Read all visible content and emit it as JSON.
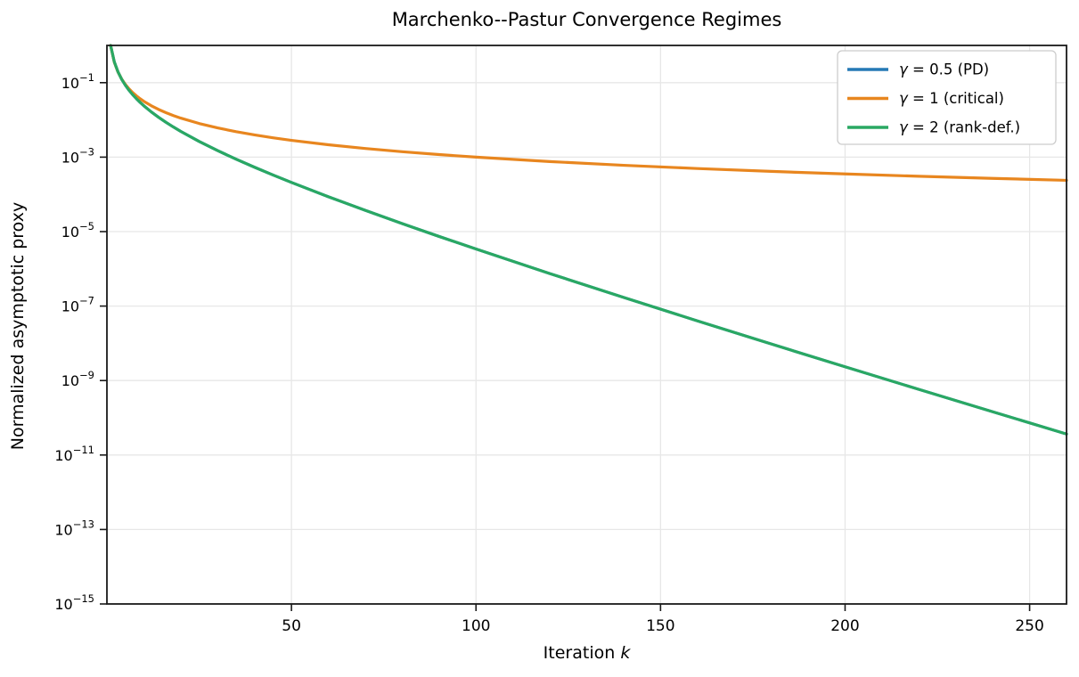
{
  "title": "Marchenko--Pastur Convergence Regimes",
  "xlabel_prefix": "Iteration ",
  "xlabel_var": "k",
  "ylabel": "Normalized asymptotic proxy",
  "colors": {
    "blue": "#2579b5",
    "orange": "#e8861f",
    "green": "#2aa863",
    "grid": "#e7e7e7",
    "spine": "#1a1a1a",
    "legend_border": "#cccccc",
    "text": "#000000"
  },
  "chart_data": {
    "type": "line",
    "title": "Marchenko--Pastur Convergence Regimes",
    "xlabel": "Iteration k",
    "ylabel": "Normalized asymptotic proxy",
    "x_scale": "linear",
    "y_scale": "log",
    "xlim": [
      0,
      260
    ],
    "ylim": [
      1e-15,
      1
    ],
    "x_ticks": [
      50,
      100,
      150,
      200,
      250
    ],
    "y_tick_exponents": [
      -1,
      -3,
      -5,
      -7,
      -9,
      -11,
      -13,
      -15
    ],
    "grid": true,
    "legend_position": "upper right",
    "x": [
      1,
      2,
      3,
      4,
      5,
      6,
      7,
      8,
      9,
      10,
      12,
      14,
      16,
      18,
      20,
      25,
      30,
      35,
      40,
      45,
      50,
      60,
      70,
      80,
      90,
      100,
      120,
      140,
      160,
      180,
      200,
      220,
      240,
      260
    ],
    "series": [
      {
        "name": "γ = 0.5 (PD)",
        "color_key": "blue",
        "note": "coincides exactly with the γ = 2 curve and is hidden beneath it",
        "values": [
          1.0,
          0.3625,
          0.195,
          0.1233,
          0.08524,
          0.06227,
          0.04732,
          0.03699,
          0.02953,
          0.02398,
          0.01645,
          0.01173,
          0.008603,
          0.00645,
          0.004917,
          0.002638,
          0.001497,
          0.000882,
          0.000535,
          0.000332,
          0.000209,
          8.65e-05,
          3.72e-05,
          1.64e-05,
          7.41e-06,
          3.41e-06,
          7.47e-07,
          1.71e-07,
          4e-08,
          9.59e-09,
          2.34e-09,
          5.79e-10,
          1.45e-10,
          3.66e-11
        ]
      },
      {
        "name": "γ = 1 (critical)",
        "color_key": "orange",
        "values": [
          1.0,
          0.3536,
          0.1925,
          0.125,
          0.08944,
          0.06804,
          0.05399,
          0.04419,
          0.03704,
          0.03162,
          0.02406,
          0.01909,
          0.01563,
          0.01309,
          0.01118,
          0.008,
          0.006086,
          0.00483,
          0.003953,
          0.003313,
          0.002828,
          0.002152,
          0.001707,
          0.001398,
          0.001171,
          0.001,
          0.000761,
          0.000604,
          0.000494,
          0.000414,
          0.0003536,
          0.0003065,
          0.0002689,
          0.0002385
        ]
      },
      {
        "name": "γ = 2 (rank-def.)",
        "color_key": "green",
        "values": [
          1.0,
          0.3625,
          0.195,
          0.1233,
          0.08524,
          0.06227,
          0.04732,
          0.03699,
          0.02953,
          0.02398,
          0.01645,
          0.01173,
          0.008603,
          0.00645,
          0.004917,
          0.002638,
          0.001497,
          0.000882,
          0.000535,
          0.000332,
          0.000209,
          8.65e-05,
          3.72e-05,
          1.64e-05,
          7.41e-06,
          3.41e-06,
          7.47e-07,
          1.71e-07,
          4e-08,
          9.59e-09,
          2.34e-09,
          5.79e-10,
          1.45e-10,
          3.66e-11
        ]
      }
    ]
  }
}
